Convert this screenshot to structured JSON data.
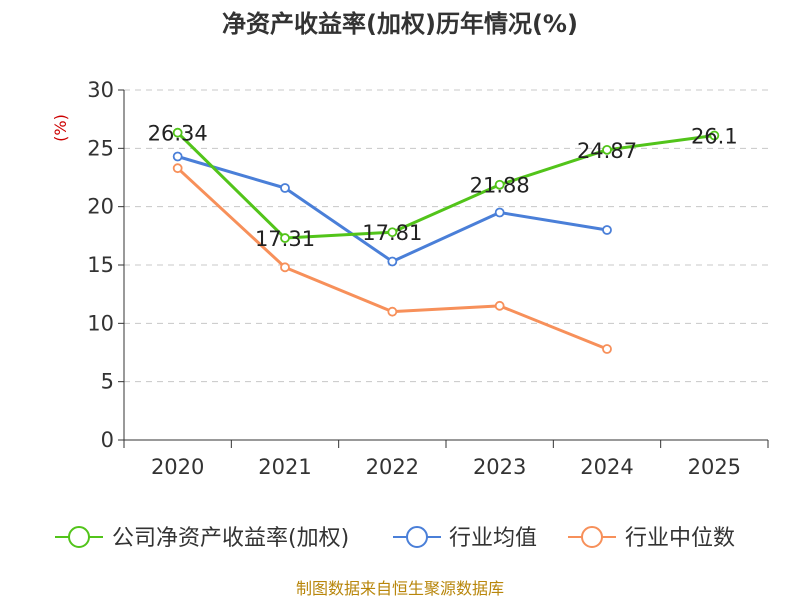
{
  "chart_data": {
    "type": "line",
    "title": "净资产收益率(加权)历年情况(%)",
    "ylabel": "(%)",
    "xlabel": "",
    "ylim": [
      0,
      30
    ],
    "yticks": [
      0,
      5,
      10,
      15,
      20,
      25,
      30
    ],
    "categories": [
      "2020",
      "2021",
      "2022",
      "2023",
      "2024",
      "2025"
    ],
    "grid": true,
    "legend_position": "bottom",
    "series": [
      {
        "name": "公司净资产收益率(加权)",
        "color": "#52c41a",
        "values": [
          26.34,
          17.31,
          17.81,
          21.88,
          24.87,
          26.1
        ],
        "labels": [
          "26.34",
          "17.31",
          "17.81",
          "21.88",
          "24.87",
          "26.1"
        ]
      },
      {
        "name": "行业均值",
        "color": "#4a7fd8",
        "values": [
          24.3,
          21.6,
          15.3,
          19.5,
          18.0,
          null
        ]
      },
      {
        "name": "行业中位数",
        "color": "#f7905a",
        "values": [
          23.3,
          14.8,
          11.0,
          11.5,
          7.8,
          null
        ]
      }
    ],
    "source": "制图数据来自恒生聚源数据库"
  }
}
